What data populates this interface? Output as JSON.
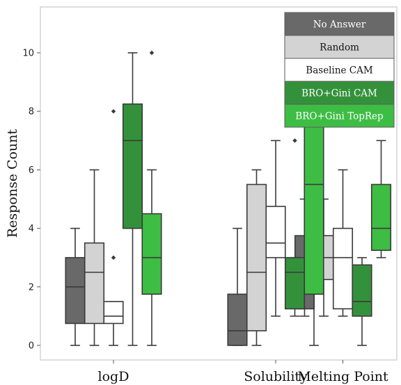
{
  "chart_data": {
    "type": "box",
    "title": "",
    "xlabel": "",
    "ylabel": "Response Count",
    "ylim": [
      -0.5,
      11.6
    ],
    "yticks": [
      0,
      2,
      4,
      6,
      8,
      10
    ],
    "grid": false,
    "legend_position": "top-right",
    "categories": [
      "logD",
      "Solubility",
      "Melting Point"
    ],
    "series": [
      {
        "name": "No Answer",
        "color": "#696969",
        "text_color": "#ffffff",
        "boxes": [
          {
            "min": 0,
            "q1": 0.75,
            "median": 2,
            "q3": 3,
            "max": 4,
            "outliers": []
          },
          {
            "min": 0,
            "q1": 0,
            "median": 0.5,
            "q3": 1.75,
            "max": 4,
            "outliers": []
          },
          {
            "min": 1,
            "q1": 1.25,
            "median": 2.5,
            "q3": 3.75,
            "max": 5,
            "outliers": []
          }
        ]
      },
      {
        "name": "Random",
        "color": "#d3d3d3",
        "text_color": "#111111",
        "boxes": [
          {
            "min": 0,
            "q1": 0.75,
            "median": 2.5,
            "q3": 3.5,
            "max": 6,
            "outliers": []
          },
          {
            "min": 0,
            "q1": 0.5,
            "median": 2.5,
            "q3": 5.5,
            "max": 6,
            "outliers": []
          },
          {
            "min": 1,
            "q1": 2.25,
            "median": 3,
            "q3": 3.75,
            "max": 5,
            "outliers": []
          }
        ]
      },
      {
        "name": "Baseline CAM",
        "color": "#ffffff",
        "text_color": "#111111",
        "boxes": [
          {
            "min": 0,
            "q1": 0.75,
            "median": 1,
            "q3": 1.5,
            "max": 1.5,
            "outliers": [
              3,
              8
            ]
          },
          {
            "min": 1,
            "q1": 3,
            "median": 3.5,
            "q3": 4.75,
            "max": 7,
            "outliers": []
          },
          {
            "min": 1,
            "q1": 1.25,
            "median": 3,
            "q3": 4,
            "max": 6,
            "outliers": []
          }
        ]
      },
      {
        "name": "BRO+Gini CAM",
        "color": "#34913b",
        "text_color": "#ffffff",
        "boxes": [
          {
            "min": 0,
            "q1": 4,
            "median": 7,
            "q3": 8.25,
            "max": 10,
            "outliers": []
          },
          {
            "min": 1,
            "q1": 1.25,
            "median": 2.5,
            "q3": 3,
            "max": 3,
            "outliers": [
              7
            ]
          },
          {
            "min": 0,
            "q1": 1,
            "median": 1.5,
            "q3": 2.75,
            "max": 3,
            "outliers": []
          }
        ]
      },
      {
        "name": "BRO+Gini TopRep",
        "color": "#3ebd44",
        "text_color": "#ffffff",
        "boxes": [
          {
            "min": 0,
            "q1": 1.75,
            "median": 3,
            "q3": 4.5,
            "max": 6,
            "outliers": [
              10
            ]
          },
          {
            "min": 0,
            "q1": 1.75,
            "median": 5.5,
            "q3": 7.5,
            "max": 11,
            "outliers": []
          },
          {
            "min": 3,
            "q1": 3.25,
            "median": 4,
            "q3": 5.5,
            "max": 7,
            "outliers": []
          }
        ]
      }
    ]
  }
}
